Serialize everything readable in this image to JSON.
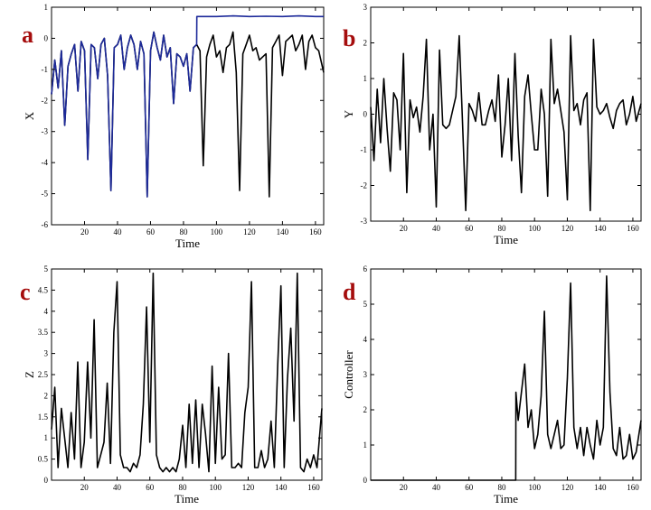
{
  "colors": {
    "panel_letter": "#a50d0d",
    "trace": "#000000",
    "controlled_trace": "#1d2a9a",
    "axes": "#000000",
    "background": "#ffffff"
  },
  "chart_data": [
    {
      "panel": "a",
      "type": "line",
      "title": "",
      "xlabel": "Time",
      "ylabel": "X",
      "xlim": [
        0,
        165
      ],
      "ylim": [
        -6,
        1
      ],
      "xticks": [
        20,
        40,
        60,
        80,
        100,
        120,
        140,
        160
      ],
      "yticks": [
        -6,
        -5,
        -4,
        -3,
        -2,
        -1,
        0,
        1
      ],
      "xtick_labels": [
        "20",
        "40",
        "60",
        "80",
        "100",
        "120",
        "140",
        "160"
      ],
      "ytick_labels": [
        "-6",
        "-5",
        "-4",
        "-3",
        "-2",
        "-1",
        "0",
        "1"
      ],
      "grid": false,
      "series": [
        {
          "color": "#000000",
          "x": [
            0,
            2,
            4,
            6,
            8,
            10,
            12,
            14,
            16,
            18,
            20,
            22,
            24,
            26,
            28,
            30,
            32,
            34,
            36,
            38,
            40,
            42,
            44,
            46,
            48,
            50,
            52,
            54,
            56,
            58,
            60,
            62,
            64,
            66,
            68,
            70,
            72,
            74,
            76,
            78,
            80,
            82,
            84,
            86,
            88,
            90,
            92,
            94,
            96,
            98,
            100,
            102,
            104,
            106,
            108,
            110,
            112,
            114,
            116,
            118,
            120,
            122,
            124,
            126,
            128,
            130,
            132,
            134,
            136,
            138,
            140,
            142,
            144,
            146,
            148,
            150,
            152,
            154,
            156,
            158,
            160,
            162,
            165
          ],
          "y": [
            -1.8,
            -0.7,
            -1.6,
            -0.4,
            -2.8,
            -0.9,
            -0.5,
            -0.2,
            -1.7,
            -0.1,
            -0.4,
            -3.9,
            -0.2,
            -0.3,
            -1.3,
            -0.2,
            0.0,
            -1.2,
            -4.9,
            -0.3,
            -0.2,
            0.1,
            -1.0,
            -0.3,
            0.1,
            -0.2,
            -1.0,
            -0.1,
            -0.5,
            -5.1,
            -0.4,
            0.2,
            -0.3,
            -0.7,
            0.1,
            -0.6,
            -0.3,
            -2.1,
            -0.5,
            -0.6,
            -0.9,
            -0.5,
            -1.7,
            -0.3,
            -0.2,
            -0.4,
            -4.1,
            -0.6,
            -0.2,
            0.1,
            -0.6,
            -0.4,
            -1.1,
            -0.3,
            -0.2,
            0.2,
            -1.1,
            -4.9,
            -0.5,
            -0.2,
            0.1,
            -0.4,
            -0.3,
            -0.7,
            -0.6,
            -0.5,
            -5.1,
            -0.3,
            -0.1,
            0.1,
            -1.2,
            -0.1,
            0.0,
            0.1,
            -0.4,
            -0.2,
            0.1,
            -1.0,
            -0.1,
            0.1,
            -0.3,
            -0.4,
            -1.1
          ]
        },
        {
          "color": "#1d2a9a",
          "x": [
            0,
            2,
            4,
            6,
            8,
            10,
            12,
            14,
            16,
            18,
            20,
            22,
            24,
            26,
            28,
            30,
            32,
            34,
            36,
            38,
            40,
            42,
            44,
            46,
            48,
            50,
            52,
            54,
            56,
            58,
            60,
            62,
            64,
            66,
            68,
            70,
            72,
            74,
            76,
            78,
            80,
            82,
            84,
            86,
            88,
            88.1,
            100,
            110,
            120,
            130,
            140,
            150,
            160,
            165
          ],
          "y": [
            -1.8,
            -0.7,
            -1.6,
            -0.4,
            -2.8,
            -0.9,
            -0.5,
            -0.2,
            -1.7,
            -0.1,
            -0.4,
            -3.9,
            -0.2,
            -0.3,
            -1.3,
            -0.2,
            0.0,
            -1.2,
            -4.9,
            -0.3,
            -0.2,
            0.1,
            -1.0,
            -0.3,
            0.1,
            -0.2,
            -1.0,
            -0.1,
            -0.5,
            -5.1,
            -0.4,
            0.2,
            -0.3,
            -0.7,
            0.1,
            -0.6,
            -0.3,
            -2.1,
            -0.5,
            -0.6,
            -0.9,
            -0.5,
            -1.7,
            -0.3,
            -0.2,
            0.7,
            0.7,
            0.72,
            0.7,
            0.71,
            0.7,
            0.72,
            0.7,
            0.7
          ]
        }
      ]
    },
    {
      "panel": "b",
      "type": "line",
      "title": "",
      "xlabel": "Time",
      "ylabel": "Y",
      "xlim": [
        0,
        165
      ],
      "ylim": [
        -3,
        3
      ],
      "xticks": [
        20,
        40,
        60,
        80,
        100,
        120,
        140,
        160
      ],
      "yticks": [
        -3,
        -2,
        -1,
        0,
        1,
        2,
        3
      ],
      "xtick_labels": [
        "20",
        "40",
        "60",
        "80",
        "100",
        "120",
        "140",
        "160"
      ],
      "ytick_labels": [
        "-3",
        "-2",
        "-1",
        "0",
        "1",
        "2",
        "3"
      ],
      "grid": false,
      "series": [
        {
          "color": "#000000",
          "x": [
            0,
            2,
            4,
            6,
            8,
            10,
            12,
            14,
            16,
            18,
            20,
            22,
            24,
            26,
            28,
            30,
            32,
            34,
            36,
            38,
            40,
            42,
            44,
            46,
            48,
            50,
            52,
            54,
            56,
            58,
            60,
            62,
            64,
            66,
            68,
            70,
            72,
            74,
            76,
            78,
            80,
            82,
            84,
            86,
            88,
            90,
            92,
            94,
            96,
            98,
            100,
            102,
            104,
            106,
            108,
            110,
            112,
            114,
            116,
            118,
            120,
            122,
            124,
            126,
            128,
            130,
            132,
            134,
            136,
            138,
            140,
            142,
            144,
            146,
            148,
            150,
            152,
            154,
            156,
            158,
            160,
            162,
            165
          ],
          "y": [
            0.2,
            -1.3,
            0.7,
            -0.8,
            1.0,
            -0.4,
            -1.6,
            0.6,
            0.4,
            -1.0,
            1.7,
            -2.2,
            0.4,
            -0.1,
            0.2,
            -0.5,
            0.5,
            2.1,
            -1.0,
            0.0,
            -2.6,
            1.8,
            -0.3,
            -0.4,
            -0.3,
            0.1,
            0.5,
            2.2,
            -0.2,
            -2.7,
            0.3,
            0.1,
            -0.2,
            0.6,
            -0.3,
            -0.3,
            0.1,
            0.4,
            -0.2,
            1.1,
            -1.2,
            -0.3,
            1.0,
            -1.3,
            1.7,
            -0.6,
            -2.2,
            0.5,
            1.1,
            0.0,
            -1.0,
            -1.0,
            0.7,
            0.0,
            -2.3,
            2.1,
            0.3,
            0.7,
            0.1,
            -0.5,
            -2.4,
            2.2,
            0.1,
            0.3,
            -0.3,
            0.4,
            0.6,
            -2.7,
            2.1,
            0.2,
            0.0,
            0.1,
            0.3,
            -0.1,
            -0.4,
            0.1,
            0.3,
            0.4,
            -0.3,
            0.0,
            0.5,
            -0.2,
            0.3
          ]
        }
      ]
    },
    {
      "panel": "c",
      "type": "line",
      "title": "",
      "xlabel": "Time",
      "ylabel": "Z",
      "xlim": [
        0,
        165
      ],
      "ylim": [
        0,
        5
      ],
      "xticks": [
        20,
        40,
        60,
        80,
        100,
        120,
        140,
        160
      ],
      "yticks": [
        0,
        0.5,
        1,
        1.5,
        2,
        2.5,
        3,
        3.5,
        4,
        4.5,
        5
      ],
      "xtick_labels": [
        "20",
        "40",
        "60",
        "80",
        "100",
        "120",
        "140",
        "160"
      ],
      "ytick_labels": [
        "0",
        "0.5",
        "1",
        "1.5",
        "2",
        "2.5",
        "3",
        "3.5",
        "4",
        "4.5",
        "5"
      ],
      "grid": false,
      "series": [
        {
          "color": "#000000",
          "x": [
            0,
            2,
            4,
            6,
            8,
            10,
            12,
            14,
            16,
            18,
            20,
            22,
            24,
            26,
            28,
            30,
            32,
            34,
            36,
            38,
            40,
            42,
            44,
            46,
            48,
            50,
            52,
            54,
            56,
            58,
            60,
            62,
            64,
            66,
            68,
            70,
            72,
            74,
            76,
            78,
            80,
            82,
            84,
            86,
            88,
            90,
            92,
            94,
            96,
            98,
            100,
            102,
            104,
            106,
            108,
            110,
            112,
            114,
            116,
            118,
            120,
            122,
            124,
            126,
            128,
            130,
            132,
            134,
            136,
            138,
            140,
            142,
            144,
            146,
            148,
            150,
            152,
            154,
            156,
            158,
            160,
            162,
            165
          ],
          "y": [
            1.2,
            2.2,
            0.3,
            1.7,
            1.0,
            0.3,
            1.6,
            0.5,
            2.8,
            0.3,
            0.9,
            2.8,
            1.0,
            3.8,
            0.3,
            0.6,
            0.9,
            2.3,
            0.4,
            3.5,
            4.7,
            0.6,
            0.3,
            0.3,
            0.2,
            0.4,
            0.3,
            0.6,
            1.8,
            4.1,
            0.9,
            4.9,
            0.6,
            0.3,
            0.2,
            0.3,
            0.2,
            0.3,
            0.2,
            0.5,
            1.3,
            0.3,
            1.8,
            0.4,
            1.9,
            0.3,
            1.8,
            1.1,
            0.2,
            2.7,
            0.4,
            2.2,
            0.5,
            0.6,
            3.0,
            0.3,
            0.3,
            0.4,
            0.3,
            1.6,
            2.2,
            4.7,
            0.3,
            0.3,
            0.7,
            0.3,
            0.5,
            1.4,
            0.3,
            2.7,
            4.6,
            0.3,
            2.4,
            3.6,
            1.4,
            4.9,
            0.3,
            0.2,
            0.5,
            0.3,
            0.6,
            0.3,
            1.7
          ]
        }
      ]
    },
    {
      "panel": "d",
      "type": "line",
      "title": "",
      "xlabel": "Time",
      "ylabel": "Controller",
      "xlim": [
        0,
        165
      ],
      "ylim": [
        0,
        6
      ],
      "xticks": [
        20,
        40,
        60,
        80,
        100,
        120,
        140,
        160
      ],
      "yticks": [
        0,
        1,
        2,
        3,
        4,
        5,
        6
      ],
      "xtick_labels": [
        "20",
        "40",
        "60",
        "80",
        "100",
        "120",
        "140",
        "160"
      ],
      "ytick_labels": [
        "0",
        "1",
        "2",
        "3",
        "4",
        "5",
        "6"
      ],
      "grid": false,
      "series": [
        {
          "color": "#000000",
          "x": [
            0,
            88.5,
            88.6,
            90,
            92,
            94,
            96,
            98,
            100,
            102,
            104,
            106,
            108,
            110,
            112,
            114,
            116,
            118,
            120,
            122,
            124,
            126,
            128,
            130,
            132,
            134,
            136,
            138,
            140,
            142,
            144,
            146,
            148,
            150,
            152,
            154,
            156,
            158,
            160,
            162,
            165
          ],
          "y": [
            0,
            0,
            2.5,
            1.7,
            2.5,
            3.3,
            1.5,
            2.0,
            0.9,
            1.3,
            2.4,
            4.8,
            1.3,
            0.9,
            1.3,
            1.7,
            0.9,
            1.0,
            2.9,
            5.6,
            1.5,
            0.9,
            1.5,
            0.7,
            1.5,
            1.0,
            0.6,
            1.7,
            1.0,
            1.5,
            5.8,
            2.5,
            0.9,
            0.7,
            1.5,
            0.6,
            0.7,
            1.3,
            0.6,
            0.8,
            1.7
          ]
        }
      ]
    }
  ]
}
